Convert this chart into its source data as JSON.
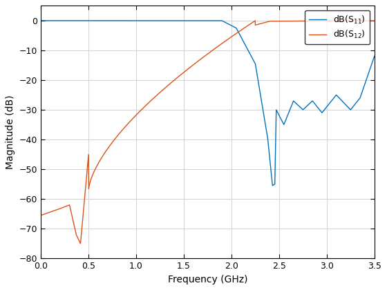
{
  "xlabel": "Frequency (GHz)",
  "ylabel": "Magnitude (dB)",
  "xlim": [
    0,
    3.5
  ],
  "ylim": [
    -80,
    5
  ],
  "yticks": [
    0,
    -10,
    -20,
    -30,
    -40,
    -50,
    -60,
    -70,
    -80
  ],
  "xticks": [
    0,
    0.5,
    1,
    1.5,
    2,
    2.5,
    3,
    3.5
  ],
  "s11_color": "#0072BD",
  "s12_color": "#D95319",
  "background_color": "#ffffff",
  "grid_color": "#d3d3d3"
}
